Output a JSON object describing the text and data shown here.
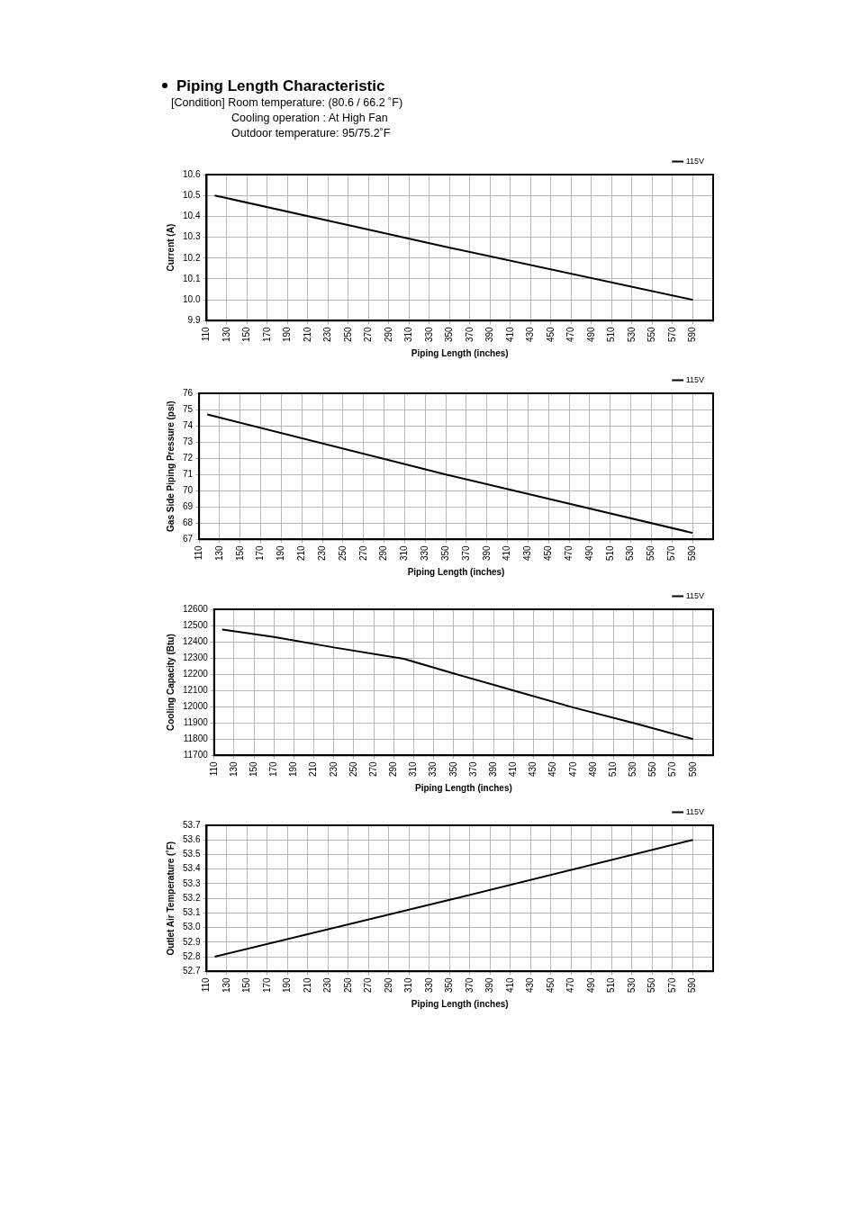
{
  "chart_data": [
    {
      "type": "line",
      "title": "Piping Length Characteristic",
      "annotations": [
        "[Condition] Room temperature: (80.6 / 66.2 ˚F)",
        "Cooling operation : At High Fan",
        "Outdoor temperature: 95/75.2˚F"
      ],
      "xlabel": "Piping Length (inches)",
      "ylabel": "Current (A)",
      "x": [
        118,
        350,
        590
      ],
      "series": [
        {
          "name": "115V",
          "color": "#000000",
          "values": [
            10.5,
            10.25,
            10.0
          ]
        }
      ],
      "xlim": [
        110,
        610
      ],
      "xticks": [
        110,
        130,
        150,
        170,
        190,
        210,
        230,
        250,
        270,
        290,
        310,
        330,
        350,
        370,
        390,
        410,
        430,
        450,
        470,
        490,
        510,
        530,
        550,
        570,
        590
      ],
      "ylim": [
        9.9,
        10.6
      ],
      "yticks": [
        9.9,
        {
          "value": 10,
          "label": "10.0"
        },
        10.1,
        10.2,
        10.3,
        10.4,
        10.5,
        10.6
      ],
      "grid": true,
      "legend": "top right",
      "marker": "none",
      "line_style": "solid"
    },
    {
      "type": "line",
      "xlabel": "Piping Length (inches)",
      "ylabel": "Gas Side Piping Pressure (psi)",
      "x": [
        118,
        350,
        590
      ],
      "series": [
        {
          "name": "115V",
          "color": "#000000",
          "values": [
            74.7,
            71.0,
            67.4
          ]
        }
      ],
      "xlim": [
        110,
        610
      ],
      "xticks": [
        110,
        130,
        150,
        170,
        190,
        210,
        230,
        250,
        270,
        290,
        310,
        330,
        350,
        370,
        390,
        410,
        430,
        450,
        470,
        490,
        510,
        530,
        550,
        570,
        590
      ],
      "ylim": [
        67,
        76
      ],
      "yticks": [
        67,
        68,
        69,
        70,
        71,
        72,
        73,
        74,
        75,
        76
      ],
      "grid": true,
      "legend": "top right",
      "marker": "none",
      "line_style": "solid"
    },
    {
      "type": "line",
      "xlabel": "Piping Length (inches)",
      "ylabel": "Cooling Capacity (Btu)",
      "x": [
        118,
        170,
        230,
        300,
        350,
        410,
        470,
        530,
        590
      ],
      "series": [
        {
          "name": "115V",
          "color": "#000000",
          "values": [
            12475,
            12430,
            12365,
            12295,
            12205,
            12100,
            11995,
            11900,
            11800
          ]
        }
      ],
      "xlim": [
        110,
        610
      ],
      "xticks": [
        110,
        130,
        150,
        170,
        190,
        210,
        230,
        250,
        270,
        290,
        310,
        330,
        350,
        370,
        390,
        410,
        430,
        450,
        470,
        490,
        510,
        530,
        550,
        570,
        590
      ],
      "ylim": [
        11700,
        12600
      ],
      "yticks": [
        11700,
        11800,
        11900,
        12000,
        12100,
        12200,
        12300,
        12400,
        12500,
        12600
      ],
      "grid": true,
      "legend": "top right",
      "marker": "none",
      "line_style": "solid"
    },
    {
      "type": "line",
      "xlabel": "Piping Length (inches)",
      "ylabel": "Outlet Air Temperature (˚F)",
      "x": [
        118,
        350,
        590
      ],
      "series": [
        {
          "name": "115V",
          "color": "#000000",
          "values": [
            52.8,
            53.19,
            53.6
          ]
        }
      ],
      "xlim": [
        110,
        610
      ],
      "xticks": [
        110,
        130,
        150,
        170,
        190,
        210,
        230,
        250,
        270,
        290,
        310,
        330,
        350,
        370,
        390,
        410,
        430,
        450,
        470,
        490,
        510,
        530,
        550,
        570,
        590
      ],
      "ylim": [
        52.7,
        53.7
      ],
      "yticks": [
        52.7,
        52.8,
        52.9,
        {
          "value": 53,
          "label": "53.0"
        },
        53.1,
        53.2,
        53.3,
        53.4,
        53.5,
        53.6,
        53.7
      ],
      "grid": true,
      "legend": "top right",
      "marker": "none",
      "line_style": "solid"
    }
  ]
}
